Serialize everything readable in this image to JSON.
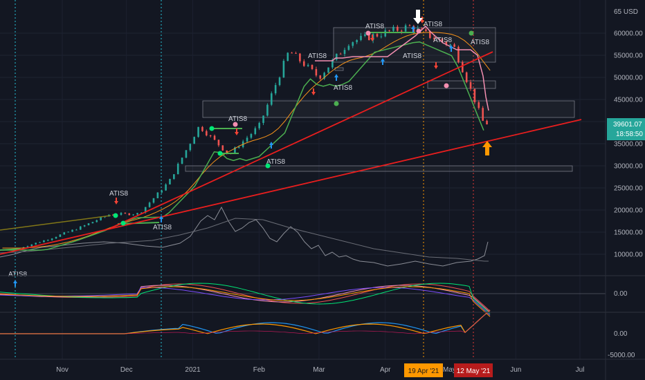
{
  "chart_data": {
    "type": "candlestick",
    "symbol_currency": "USD",
    "price_axis": {
      "top_label_partial": "65 USD",
      "ticks": [
        "60000.00",
        "55000.00",
        "50000.00",
        "45000.00",
        "40000.00",
        "35000.00",
        "30000.00",
        "25000.00",
        "20000.00",
        "15000.00",
        "10000.00"
      ],
      "range": [
        5000,
        65000
      ]
    },
    "time_axis": {
      "ticks": [
        "Nov",
        "Dec",
        "2021",
        "Feb",
        "Mar",
        "Apr",
        "May",
        "Jun",
        "Jul"
      ],
      "highlight_labels": [
        {
          "text": "19 Apr '21",
          "color": "#ff9800"
        },
        {
          "text": "12 May '21",
          "color": "#b71c1c"
        }
      ]
    },
    "last_price": {
      "value": "39601.07",
      "countdown": "18:58:50",
      "color": "#26a69a"
    },
    "signal_label": "ATIS8",
    "signal_labels": [
      "ATIS8",
      "ATIS8",
      "ATIS8",
      "ATIS8",
      "ATIS8",
      "ATIS8",
      "ATIS8",
      "ATIS8",
      "ATIS8",
      "ATIS8",
      "ATIS8"
    ],
    "osc1": {
      "axis_labels": [
        "0.00"
      ]
    },
    "osc2": {
      "axis_labels": [
        "0.00",
        "-5000.00"
      ]
    },
    "approx_price_path_weekly": [
      {
        "week": "2020-10-12",
        "close": 11400
      },
      {
        "week": "2020-10-26",
        "close": 13500
      },
      {
        "week": "2020-11-09",
        "close": 16000
      },
      {
        "week": "2020-11-23",
        "close": 19000
      },
      {
        "week": "2020-12-07",
        "close": 19200
      },
      {
        "week": "2020-12-21",
        "close": 26500
      },
      {
        "week": "2021-01-04",
        "close": 39000
      },
      {
        "week": "2021-01-18",
        "close": 32500
      },
      {
        "week": "2021-02-01",
        "close": 39000
      },
      {
        "week": "2021-02-15",
        "close": 56000
      },
      {
        "week": "2021-03-01",
        "close": 50000
      },
      {
        "week": "2021-03-15",
        "close": 58000
      },
      {
        "week": "2021-04-12",
        "close": 61500
      },
      {
        "week": "2021-05-03",
        "close": 57000
      },
      {
        "week": "2021-05-17",
        "close": 39600
      }
    ],
    "colors": {
      "background": "#131722",
      "up": "#26a69a",
      "down": "#ef5350",
      "trendline": "#e91e1e",
      "ma": "#f7931a",
      "support": "#4caf50",
      "resistance": "#f48fb1"
    }
  }
}
